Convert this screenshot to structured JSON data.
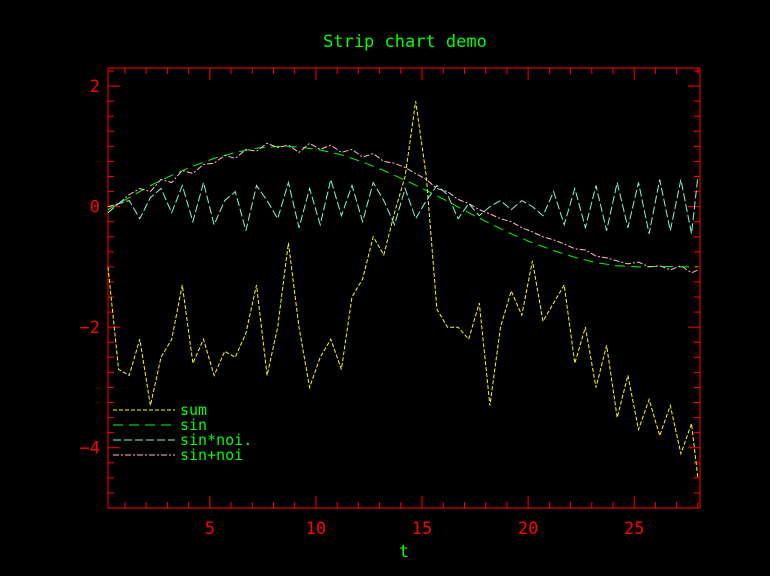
{
  "chart_data": {
    "type": "line",
    "title": "Strip chart demo",
    "xlabel": "t",
    "ylabel": "",
    "xlim": [
      0.2,
      28.1
    ],
    "ylim": [
      -5,
      2.3
    ],
    "xticks": [
      5,
      10,
      15,
      20,
      25
    ],
    "yticks": [
      2,
      0,
      -2,
      -4
    ],
    "grid": false,
    "legend_position": "bottom-left",
    "colors": {
      "background": "#000000",
      "axes": "#ff0000",
      "title": "#00ff00",
      "legend_text": "#00ff00",
      "sum": "#ffff00",
      "sin": "#00ff00",
      "sin_noise": "#7fffd4",
      "sin_plus_noise": "#ffc0cb"
    },
    "legend": [
      {
        "label": "sum",
        "series": "sum",
        "dash": "4,2"
      },
      {
        "label": "sin",
        "series": "sin",
        "dash": "10,6"
      },
      {
        "label": "sin*noi.",
        "series": "sin_noise",
        "dash": "8,3"
      },
      {
        "label": "sin+noi",
        "series": "sin_plus_noise",
        "dash": "6,2,2,2"
      }
    ],
    "series": [
      {
        "name": "sum",
        "x": [
          0.2,
          0.7,
          1.2,
          1.7,
          2.2,
          2.7,
          3.2,
          3.7,
          4.2,
          4.7,
          5.2,
          5.7,
          6.2,
          6.7,
          7.2,
          7.7,
          8.2,
          8.7,
          9.2,
          9.7,
          10.2,
          10.7,
          11.2,
          11.7,
          12.2,
          12.7,
          13.2,
          13.7,
          14.2,
          14.7,
          15.2,
          15.7,
          16.2,
          16.7,
          17.2,
          17.7,
          18.2,
          18.7,
          19.2,
          19.7,
          20.2,
          20.7,
          21.2,
          21.7,
          22.2,
          22.7,
          23.2,
          23.7,
          24.2,
          24.7,
          25.2,
          25.7,
          26.2,
          26.7,
          27.2,
          27.7,
          28.0
        ],
        "y": [
          -1.0,
          -2.7,
          -2.8,
          -2.2,
          -3.3,
          -2.5,
          -2.2,
          -1.3,
          -2.6,
          -2.2,
          -2.8,
          -2.4,
          -2.5,
          -2.1,
          -1.3,
          -2.8,
          -2.0,
          -0.6,
          -2.0,
          -3.0,
          -2.5,
          -2.2,
          -2.7,
          -1.5,
          -1.2,
          -0.5,
          -0.8,
          -0.1,
          0.5,
          1.75,
          0.5,
          -1.7,
          -2.0,
          -2.0,
          -2.2,
          -1.6,
          -3.3,
          -2.0,
          -1.4,
          -1.8,
          -0.9,
          -1.9,
          -1.6,
          -1.3,
          -2.6,
          -2.0,
          -3.0,
          -2.3,
          -3.5,
          -2.8,
          -3.7,
          -3.2,
          -3.8,
          -3.3,
          -4.1,
          -3.6,
          -4.5
        ]
      },
      {
        "name": "sin",
        "x": [
          0.2,
          1.2,
          2.2,
          3.2,
          4.2,
          5.2,
          6.2,
          7.2,
          8.2,
          9.2,
          10.2,
          11.2,
          12.2,
          13.2,
          14.2,
          15.2,
          16.2,
          17.2,
          18.2,
          19.2,
          20.2,
          21.2,
          22.2,
          23.2,
          24.2,
          25.2,
          26.2,
          27.2,
          28.0
        ],
        "y": [
          -0.05,
          0.15,
          0.35,
          0.52,
          0.67,
          0.8,
          0.9,
          0.97,
          1.0,
          0.99,
          0.94,
          0.86,
          0.74,
          0.6,
          0.44,
          0.27,
          0.09,
          -0.1,
          -0.28,
          -0.45,
          -0.6,
          -0.73,
          -0.84,
          -0.93,
          -0.98,
          -1.0,
          -0.99,
          -1.0,
          -1.0
        ]
      },
      {
        "name": "sin_noise",
        "x": [
          0.2,
          0.7,
          1.2,
          1.7,
          2.2,
          2.7,
          3.2,
          3.7,
          4.2,
          4.7,
          5.2,
          5.7,
          6.2,
          6.7,
          7.2,
          7.7,
          8.2,
          8.7,
          9.2,
          9.7,
          10.2,
          10.7,
          11.2,
          11.7,
          12.2,
          12.7,
          13.2,
          13.7,
          14.2,
          14.7,
          15.2,
          15.7,
          16.2,
          16.7,
          17.2,
          17.7,
          18.2,
          18.7,
          19.2,
          19.7,
          20.2,
          20.7,
          21.2,
          21.7,
          22.2,
          22.7,
          23.2,
          23.7,
          24.2,
          24.7,
          25.2,
          25.7,
          26.2,
          26.7,
          27.2,
          27.7,
          28.0
        ],
        "y": [
          -0.1,
          0.05,
          0.1,
          -0.2,
          0.15,
          0.3,
          -0.1,
          0.35,
          -0.25,
          0.4,
          -0.3,
          0.1,
          0.25,
          -0.4,
          0.35,
          0.1,
          -0.2,
          0.4,
          -0.35,
          0.3,
          -0.3,
          0.45,
          -0.15,
          0.35,
          -0.25,
          0.4,
          0.1,
          -0.3,
          0.3,
          -0.2,
          0.1,
          0.35,
          0.2,
          -0.2,
          0.05,
          -0.15,
          0.0,
          0.1,
          -0.05,
          0.1,
          0.0,
          -0.15,
          0.25,
          -0.3,
          0.3,
          -0.35,
          0.35,
          -0.4,
          0.4,
          -0.35,
          0.4,
          -0.45,
          0.45,
          -0.4,
          0.45,
          -0.45,
          0.5
        ]
      },
      {
        "name": "sin_plus_noise",
        "x": [
          0.2,
          0.7,
          1.2,
          1.7,
          2.2,
          2.7,
          3.2,
          3.7,
          4.2,
          4.7,
          5.2,
          5.7,
          6.2,
          6.7,
          7.2,
          7.7,
          8.2,
          8.7,
          9.2,
          9.7,
          10.2,
          10.7,
          11.2,
          11.7,
          12.2,
          12.7,
          13.2,
          13.7,
          14.2,
          14.7,
          15.2,
          15.7,
          16.2,
          16.7,
          17.2,
          17.7,
          18.2,
          18.7,
          19.2,
          19.7,
          20.2,
          20.7,
          21.2,
          21.7,
          22.2,
          22.7,
          23.2,
          23.7,
          24.2,
          24.7,
          25.2,
          25.7,
          26.2,
          26.7,
          27.2,
          27.7,
          28.0
        ],
        "y": [
          0.0,
          0.05,
          0.2,
          0.3,
          0.25,
          0.45,
          0.4,
          0.6,
          0.55,
          0.7,
          0.72,
          0.85,
          0.8,
          0.95,
          0.92,
          1.05,
          0.98,
          1.02,
          0.9,
          1.05,
          0.95,
          1.02,
          0.9,
          0.95,
          0.82,
          0.88,
          0.75,
          0.72,
          0.65,
          0.55,
          0.45,
          0.3,
          0.25,
          0.12,
          0.05,
          -0.05,
          -0.12,
          -0.2,
          -0.25,
          -0.35,
          -0.42,
          -0.5,
          -0.55,
          -0.62,
          -0.7,
          -0.72,
          -0.82,
          -0.85,
          -0.9,
          -0.95,
          -0.92,
          -1.0,
          -0.98,
          -1.05,
          -0.98,
          -1.1,
          -1.05
        ]
      }
    ]
  }
}
